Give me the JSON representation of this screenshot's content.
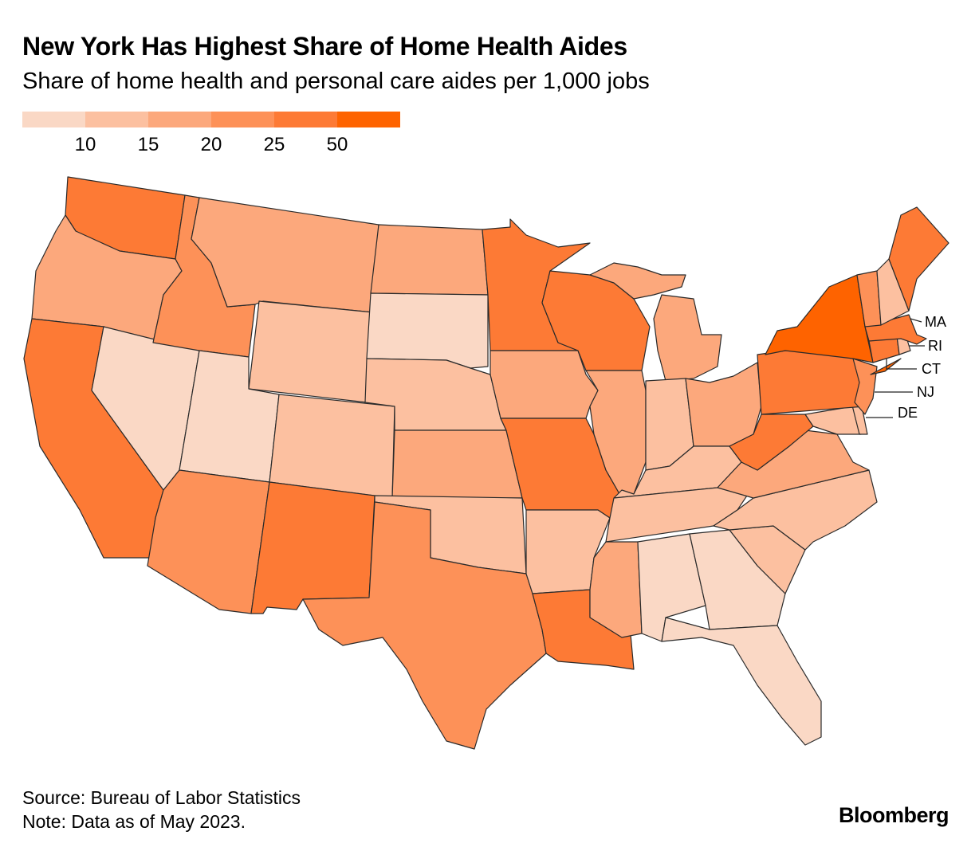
{
  "title": "New York Has Highest Share of Home Health Aides",
  "subtitle": "Share of home health and personal care aides per 1,000 jobs",
  "legend": {
    "bins": [
      "#fad8c5",
      "#fcc0a0",
      "#fca87c",
      "#fd9158",
      "#fd7a35",
      "#fe6300"
    ],
    "labels": [
      "10",
      "15",
      "20",
      "25",
      "50"
    ]
  },
  "chart_data": {
    "type": "choropleth",
    "title": "New York Has Highest Share of Home Health Aides",
    "measure": "Home health and personal care aides per 1,000 jobs",
    "bin_breaks": [
      10,
      15,
      20,
      25,
      50
    ],
    "bin_ranges": [
      "<10",
      "10-15",
      "15-20",
      "20-25",
      "25-50",
      ">50"
    ],
    "states": {
      "WA": 4,
      "OR": 2,
      "CA": 4,
      "NV": 0,
      "ID": 3,
      "MT": 2,
      "WY": 1,
      "UT": 0,
      "AZ": 3,
      "CO": 1,
      "NM": 4,
      "ND": 2,
      "SD": 0,
      "NE": 1,
      "KS": 2,
      "OK": 1,
      "TX": 3,
      "MN": 4,
      "IA": 2,
      "MO": 4,
      "AR": 1,
      "LA": 4,
      "WI": 4,
      "IL": 2,
      "MI": 2,
      "IN": 1,
      "OH": 2,
      "KY": 1,
      "TN": 1,
      "MS": 2,
      "AL": 0,
      "GA": 0,
      "FL": 0,
      "SC": 1,
      "NC": 1,
      "VA": 2,
      "WV": 4,
      "MD": 1,
      "DE": 1,
      "PA": 4,
      "NJ": 3,
      "NY": 5,
      "CT": 4,
      "RI": 1,
      "MA": 4,
      "VT": 3,
      "NH": 1,
      "ME": 4
    }
  },
  "callouts": [
    "MA",
    "RI",
    "CT",
    "NJ",
    "DE"
  ],
  "footer": {
    "source": "Source: Bureau of Labor Statistics",
    "note": "Note: Data as of May 2023.",
    "logo": "Bloomberg"
  }
}
